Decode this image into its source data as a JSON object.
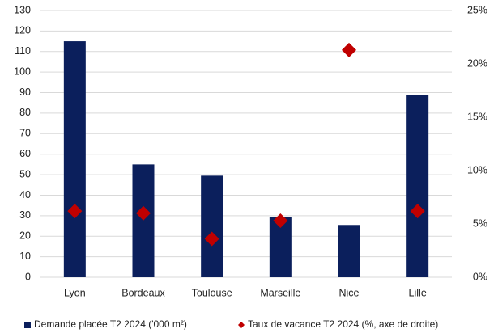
{
  "chart_data": {
    "type": "bar",
    "categories": [
      "Lyon",
      "Bordeaux",
      "Toulouse",
      "Marseille",
      "Nice",
      "Lille"
    ],
    "series": [
      {
        "name": "Demande placée T2 2024 ('000 m²)",
        "color": "#0b1f5c",
        "values": [
          115,
          55,
          49.5,
          29.5,
          25.5,
          89
        ]
      },
      {
        "name": "Taux de vacance T2 2024 (%, axe de droite)",
        "color": "#c00000",
        "type": "scatter",
        "axis": "y2",
        "values": [
          6.2,
          6.0,
          3.6,
          5.3,
          21.3,
          6.2
        ]
      }
    ],
    "ylim": [
      0,
      130
    ],
    "yticks": [
      0,
      10,
      20,
      30,
      40,
      50,
      60,
      70,
      80,
      90,
      100,
      110,
      120,
      130
    ],
    "y2lim": [
      0,
      25
    ],
    "y2ticks": [
      {
        "value": 0,
        "label": "0%"
      },
      {
        "value": 5,
        "label": "5%"
      },
      {
        "value": 10,
        "label": "10%"
      },
      {
        "value": 15,
        "label": "15%"
      },
      {
        "value": 20,
        "label": "20%"
      },
      {
        "value": 25,
        "label": "25%"
      }
    ],
    "grid": true
  }
}
